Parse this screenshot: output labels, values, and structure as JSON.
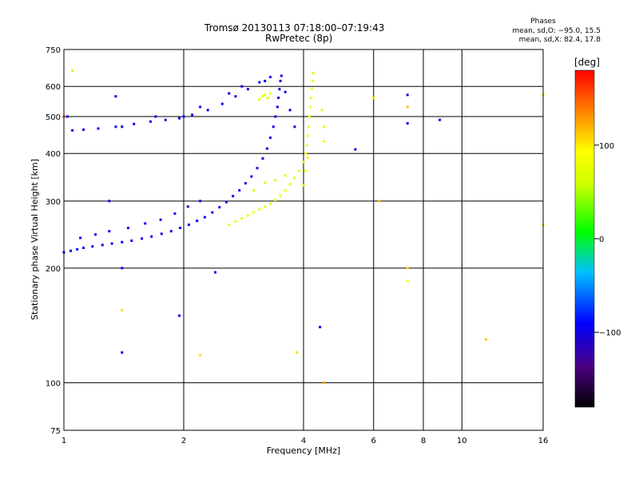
{
  "chart_data": {
    "type": "scatter",
    "title": "Tromsø 20130113 07:18:00–07:19:43",
    "subtitle": "RwPretec (8p)",
    "xlabel": "Frequency [MHz]",
    "ylabel": "Stationary phase Virtual Height [km]",
    "x_scale": "log",
    "y_scale": "log",
    "xlim": [
      1,
      16
    ],
    "ylim": [
      75,
      750
    ],
    "x_ticks": [
      "1",
      "2",
      "4",
      "6",
      "8",
      "10",
      "16"
    ],
    "x_tick_values": [
      1,
      2,
      4,
      6,
      8,
      10,
      16
    ],
    "y_ticks": [
      "75",
      "100",
      "200",
      "300",
      "400",
      "500",
      "600",
      "750"
    ],
    "y_tick_values": [
      75,
      100,
      200,
      300,
      400,
      500,
      600,
      750
    ],
    "grid": true,
    "phase_stats": {
      "title": "Phases",
      "line_o": "mean, sd,O: −95.0, 15.5",
      "line_x": "mean, sd,X:  82.4, 17.8"
    },
    "colorbar": {
      "label": "[deg]",
      "ticks": [
        "100",
        "0",
        "−100"
      ],
      "tick_values": [
        100,
        0,
        -100
      ],
      "range": [
        -180,
        180
      ]
    },
    "series": [
      {
        "points": [
          [
            1.0,
            220,
            -95
          ],
          [
            1.04,
            222,
            -100
          ],
          [
            1.08,
            224,
            -90
          ],
          [
            1.12,
            226,
            -95
          ],
          [
            1.18,
            228,
            -100
          ],
          [
            1.25,
            230,
            -95
          ],
          [
            1.32,
            232,
            -95
          ],
          [
            1.4,
            234,
            -100
          ],
          [
            1.48,
            236,
            -95
          ],
          [
            1.57,
            239,
            -95
          ],
          [
            1.66,
            242,
            -90
          ],
          [
            1.76,
            246,
            -95
          ],
          [
            1.86,
            250,
            -100
          ],
          [
            1.96,
            255,
            -95
          ],
          [
            2.06,
            260,
            -95
          ],
          [
            2.16,
            266,
            -90
          ],
          [
            2.26,
            272,
            -95
          ],
          [
            2.36,
            280,
            -100
          ],
          [
            2.46,
            289,
            -95
          ],
          [
            2.56,
            298,
            -95
          ],
          [
            2.66,
            309,
            -90
          ],
          [
            2.76,
            320,
            -95
          ],
          [
            2.86,
            334,
            -100
          ],
          [
            2.96,
            348,
            -95
          ],
          [
            3.06,
            366,
            -95
          ],
          [
            3.16,
            388,
            -90
          ],
          [
            3.24,
            412,
            -95
          ],
          [
            3.3,
            440,
            -100
          ],
          [
            3.36,
            470,
            -95
          ],
          [
            3.4,
            500,
            -95
          ],
          [
            3.44,
            530,
            -90
          ],
          [
            3.46,
            560,
            -95
          ],
          [
            3.48,
            590,
            -100
          ],
          [
            3.5,
            620,
            -95
          ],
          [
            3.52,
            640,
            -95
          ],
          [
            1.1,
            240,
            -95
          ],
          [
            1.2,
            245,
            -100
          ],
          [
            1.3,
            250,
            -90
          ],
          [
            1.45,
            255,
            -95
          ],
          [
            1.6,
            262,
            -95
          ],
          [
            1.75,
            268,
            -100
          ],
          [
            1.9,
            278,
            -95
          ],
          [
            2.05,
            290,
            -95
          ],
          [
            2.2,
            300,
            -90
          ],
          [
            1.05,
            460,
            -95
          ],
          [
            1.12,
            462,
            -100
          ],
          [
            1.22,
            465,
            -95
          ],
          [
            1.35,
            470,
            -95
          ],
          [
            1.5,
            478,
            -90
          ],
          [
            1.65,
            485,
            -95
          ],
          [
            1.8,
            490,
            -100
          ],
          [
            1.95,
            495,
            -95
          ],
          [
            2.1,
            505,
            -95
          ],
          [
            2.3,
            520,
            -90
          ],
          [
            2.5,
            540,
            -95
          ],
          [
            2.7,
            565,
            -100
          ],
          [
            2.9,
            590,
            -95
          ],
          [
            3.1,
            615,
            -95
          ],
          [
            3.3,
            635,
            -90
          ],
          [
            1.4,
            470,
            -95
          ],
          [
            1.7,
            500,
            -100
          ],
          [
            2.0,
            500,
            -95
          ],
          [
            2.2,
            530,
            -95
          ],
          [
            2.6,
            575,
            -90
          ],
          [
            2.8,
            600,
            -95
          ],
          [
            3.2,
            620,
            -100
          ],
          [
            3.6,
            580,
            -95
          ],
          [
            3.7,
            520,
            -90
          ],
          [
            3.8,
            470,
            -95
          ],
          [
            1.02,
            500,
            -95
          ],
          [
            1.35,
            565,
            -100
          ],
          [
            1.3,
            300,
            -95
          ],
          [
            1.4,
            200,
            -95
          ],
          [
            2.4,
            195,
            -100
          ],
          [
            1.95,
            150,
            -95
          ],
          [
            1.4,
            120,
            -90
          ],
          [
            4.4,
            140,
            -95
          ],
          [
            7.3,
            480,
            -95
          ],
          [
            8.8,
            490,
            -100
          ],
          [
            7.3,
            570,
            -95
          ],
          [
            5.4,
            410,
            -95
          ]
        ]
      },
      {
        "points": [
          [
            2.6,
            260,
            80
          ],
          [
            2.7,
            265,
            85
          ],
          [
            2.8,
            270,
            75
          ],
          [
            2.9,
            275,
            80
          ],
          [
            3.0,
            280,
            90
          ],
          [
            3.1,
            285,
            85
          ],
          [
            3.2,
            290,
            80
          ],
          [
            3.3,
            295,
            75
          ],
          [
            3.4,
            302,
            80
          ],
          [
            3.5,
            310,
            85
          ],
          [
            3.6,
            320,
            90
          ],
          [
            3.7,
            332,
            80
          ],
          [
            3.8,
            345,
            75
          ],
          [
            3.9,
            360,
            85
          ],
          [
            4.0,
            380,
            80
          ],
          [
            4.05,
            400,
            90
          ],
          [
            4.08,
            420,
            85
          ],
          [
            4.1,
            445,
            80
          ],
          [
            4.12,
            470,
            75
          ],
          [
            4.14,
            500,
            85
          ],
          [
            4.16,
            530,
            90
          ],
          [
            4.18,
            560,
            80
          ],
          [
            4.2,
            590,
            85
          ],
          [
            4.22,
            620,
            80
          ],
          [
            4.23,
            650,
            75
          ],
          [
            4.0,
            330,
            80
          ],
          [
            4.05,
            360,
            85
          ],
          [
            4.1,
            390,
            90
          ],
          [
            3.1,
            555,
            80
          ],
          [
            3.15,
            565,
            85
          ],
          [
            3.2,
            570,
            75
          ],
          [
            3.25,
            560,
            80
          ],
          [
            3.3,
            575,
            85
          ],
          [
            3.0,
            320,
            60
          ],
          [
            3.2,
            335,
            65
          ],
          [
            3.4,
            340,
            70
          ],
          [
            3.6,
            350,
            75
          ],
          [
            4.5,
            430,
            85
          ],
          [
            4.5,
            470,
            80
          ],
          [
            4.45,
            520,
            90
          ],
          [
            6.0,
            560,
            110
          ],
          [
            7.3,
            530,
            120
          ],
          [
            1.05,
            660,
            60
          ],
          [
            1.0,
            500,
            150
          ],
          [
            7.3,
            200,
            110
          ],
          [
            7.3,
            185,
            100
          ],
          [
            6.2,
            300,
            120
          ],
          [
            11.5,
            130,
            120
          ],
          [
            16.0,
            570,
            110
          ],
          [
            16.0,
            260,
            110
          ],
          [
            3.85,
            120,
            110
          ],
          [
            2.2,
            118,
            110
          ],
          [
            4.5,
            100,
            130
          ],
          [
            1.4,
            155,
            110
          ]
        ]
      }
    ]
  }
}
